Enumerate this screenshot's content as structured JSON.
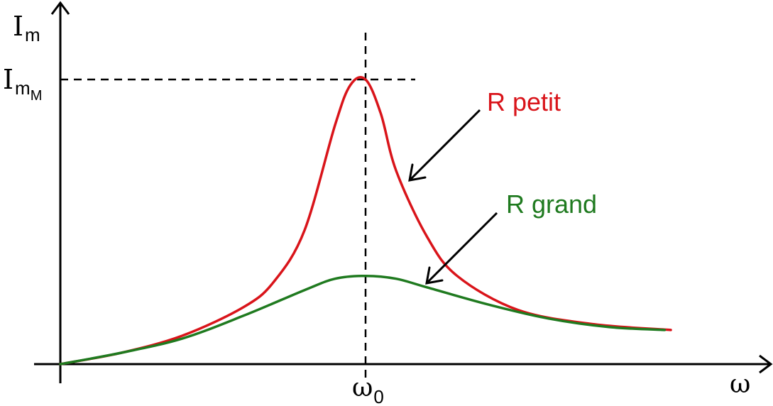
{
  "chart_data": {
    "type": "line",
    "title": "",
    "ylabel": {
      "main": "I",
      "sub": "m"
    },
    "xlabel": "ω",
    "ytick": {
      "main": "I",
      "sub": "m",
      "subsub": "M"
    },
    "xtick": {
      "main": "ω",
      "sub": "0"
    },
    "xlim": [
      0,
      2
    ],
    "ylim": [
      0,
      1.0
    ],
    "grid": false,
    "series": [
      {
        "name": "R petit",
        "color": "#d9141a",
        "x": [
          0.0,
          0.2,
          0.4,
          0.6,
          0.7,
          0.8,
          0.9,
          0.95,
          1.0,
          1.05,
          1.1,
          1.2,
          1.3,
          1.5,
          1.75,
          2.0
        ],
        "y": [
          0.0,
          0.04,
          0.1,
          0.2,
          0.29,
          0.47,
          0.84,
          0.98,
          1.0,
          0.88,
          0.68,
          0.45,
          0.31,
          0.19,
          0.14,
          0.12
        ]
      },
      {
        "name": "R grand",
        "color": "#1f7a1f",
        "x": [
          0.0,
          0.2,
          0.4,
          0.6,
          0.8,
          0.9,
          1.0,
          1.1,
          1.2,
          1.4,
          1.6,
          1.8,
          1.98
        ],
        "y": [
          0.0,
          0.04,
          0.09,
          0.17,
          0.26,
          0.3,
          0.31,
          0.3,
          0.27,
          0.21,
          0.16,
          0.13,
          0.12
        ]
      }
    ]
  }
}
